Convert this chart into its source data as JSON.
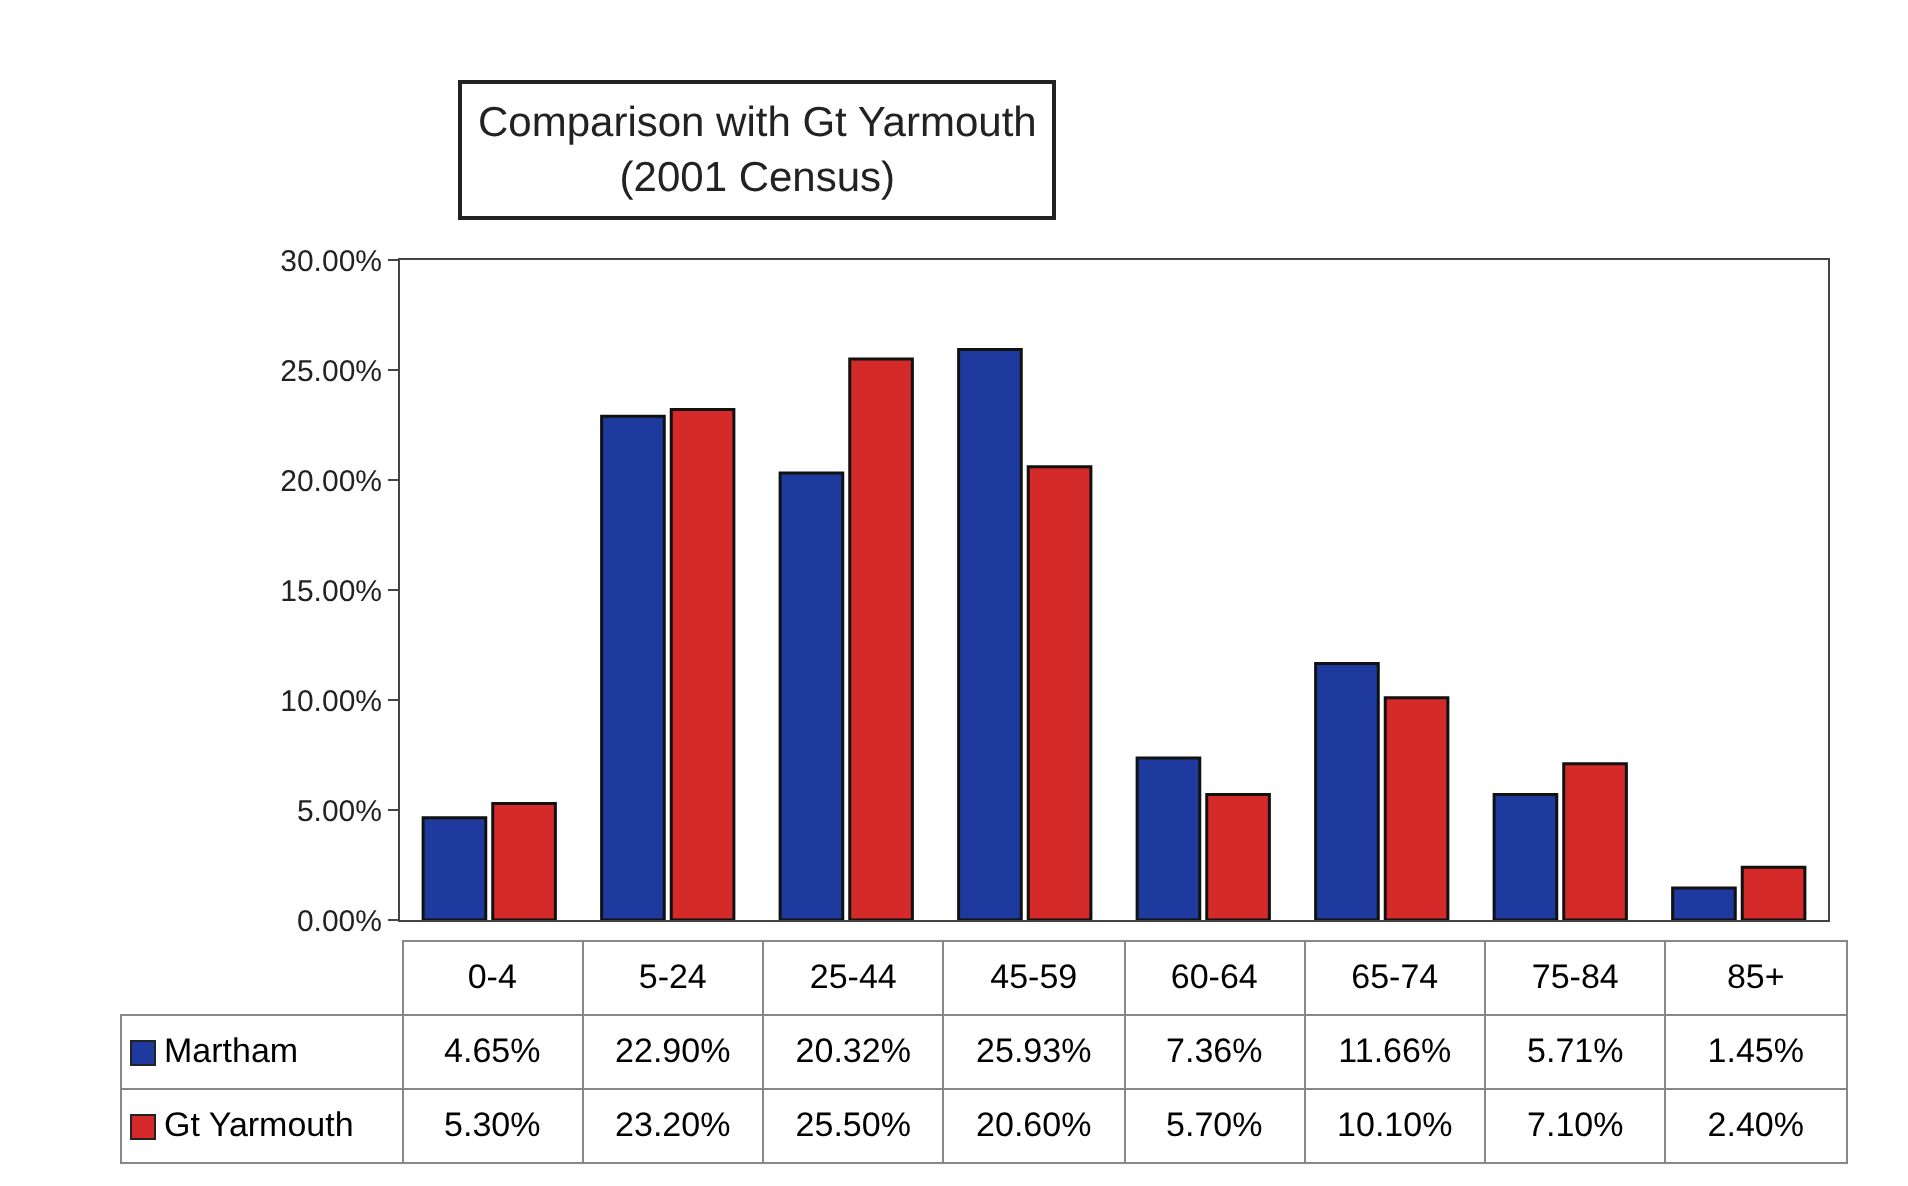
{
  "chart_data": {
    "type": "bar",
    "title": "Comparison with Gt Yarmouth\n(2001 Census)",
    "categories": [
      "0-4",
      "5-24",
      "25-44",
      "45-59",
      "60-64",
      "65-74",
      "75-84",
      "85+"
    ],
    "series": [
      {
        "name": "Martham",
        "color": "#1f3a9e",
        "values": [
          4.65,
          22.9,
          20.32,
          25.93,
          7.36,
          11.66,
          5.71,
          1.45
        ],
        "value_labels": [
          "4.65%",
          "22.90%",
          "20.32%",
          "25.93%",
          "7.36%",
          "11.66%",
          "5.71%",
          "1.45%"
        ]
      },
      {
        "name": "Gt Yarmouth",
        "color": "#d42a2a",
        "values": [
          5.3,
          23.2,
          25.5,
          20.6,
          5.7,
          10.1,
          7.1,
          2.4
        ],
        "value_labels": [
          "5.30%",
          "23.20%",
          "25.50%",
          "20.60%",
          "5.70%",
          "10.10%",
          "7.10%",
          "2.40%"
        ]
      }
    ],
    "ylim": [
      0,
      30
    ],
    "yticks": [
      {
        "value": 0,
        "label": "0.00%"
      },
      {
        "value": 5,
        "label": "5.00%"
      },
      {
        "value": 10,
        "label": "10.00%"
      },
      {
        "value": 15,
        "label": "15.00%"
      },
      {
        "value": 20,
        "label": "20.00%"
      },
      {
        "value": 25,
        "label": "25.00%"
      },
      {
        "value": 30,
        "label": "30.00%"
      }
    ],
    "grid": false,
    "legend": "bottom left"
  }
}
